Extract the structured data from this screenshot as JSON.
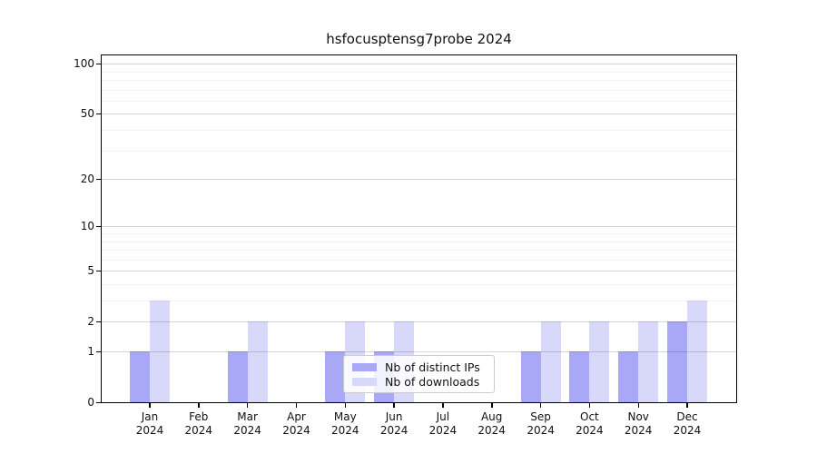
{
  "title": "hsfocusptensg7probe 2024",
  "chart_data": {
    "type": "bar",
    "title": "hsfocusptensg7probe 2024",
    "y_scale": "log(1+v)",
    "categories": [
      "Jan",
      "Feb",
      "Mar",
      "Apr",
      "May",
      "Jun",
      "Jul",
      "Aug",
      "Sep",
      "Oct",
      "Nov",
      "Dec"
    ],
    "x_tick_year": "2024",
    "series": [
      {
        "name": "Nb of distinct IPs",
        "color": "#a8a8f6",
        "values": [
          1,
          0,
          1,
          0,
          1,
          1,
          0,
          0,
          1,
          1,
          1,
          2
        ]
      },
      {
        "name": "Nb of downloads",
        "color": "#d8d8fa",
        "values": [
          3,
          0,
          2,
          0,
          2,
          2,
          0,
          0,
          2,
          2,
          2,
          3
        ]
      }
    ],
    "y_major_ticks": [
      0,
      1,
      2,
      5,
      10,
      20,
      50,
      100
    ],
    "y_minor_gridlines": [
      3,
      4,
      6,
      7,
      8,
      9,
      30,
      40,
      60,
      70,
      80,
      90
    ],
    "ylim": [
      0,
      112
    ],
    "grid": "on",
    "legend_position": "lower center"
  }
}
